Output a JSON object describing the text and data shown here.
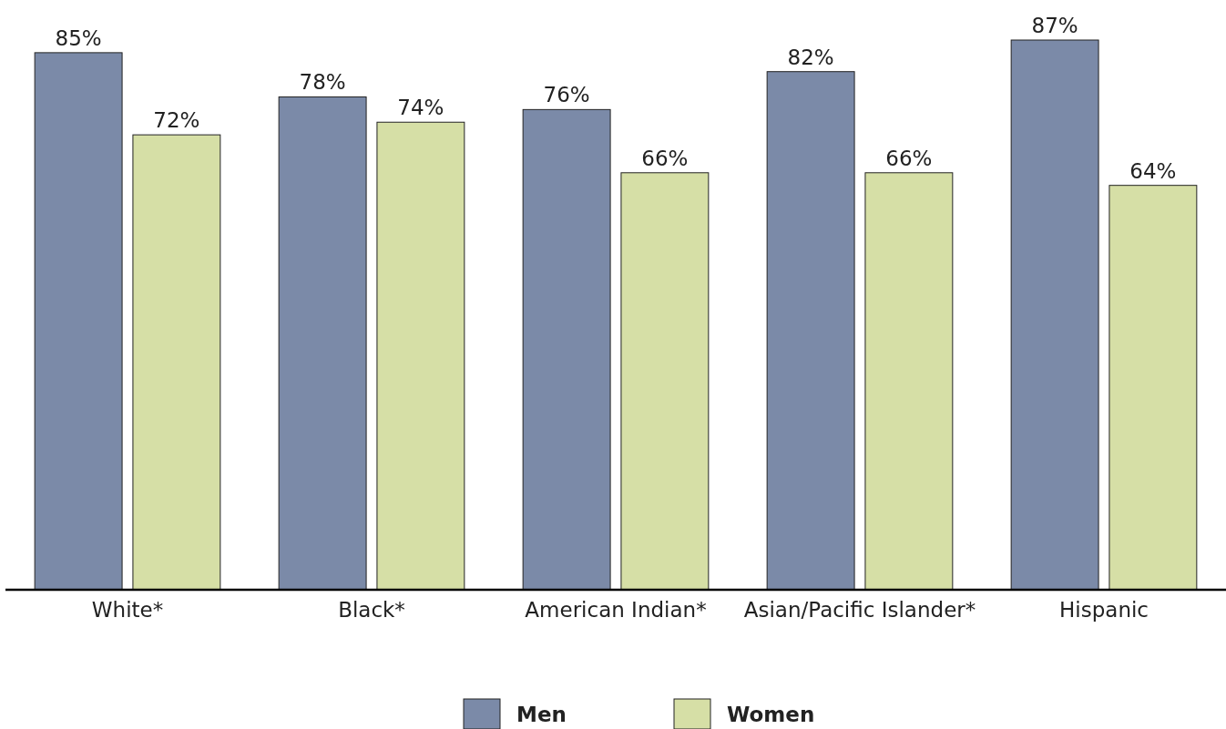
{
  "chart_data": {
    "type": "bar",
    "categories": [
      "White*",
      "Black*",
      "American Indian*",
      "Asian/Pacific Islander*",
      "Hispanic"
    ],
    "series": [
      {
        "name": "Men",
        "color": "#7b8aa8",
        "values": [
          85,
          78,
          76,
          82,
          87
        ],
        "value_labels": [
          "85%",
          "78%",
          "76%",
          "82%",
          "87%"
        ]
      },
      {
        "name": "Women",
        "color": "#d6dfa6",
        "values": [
          72,
          74,
          66,
          66,
          64
        ],
        "value_labels": [
          "72%",
          "74%",
          "66%",
          "66%",
          "64%"
        ]
      }
    ],
    "tick_labels": "x",
    "legend": "bottom"
  }
}
